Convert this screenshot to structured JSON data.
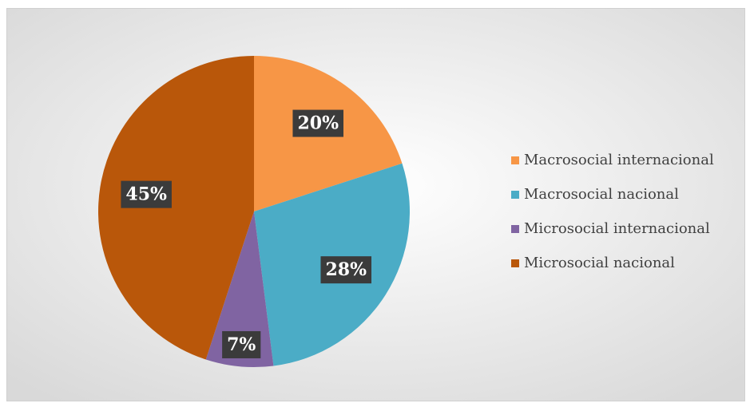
{
  "chart_data": {
    "type": "pie",
    "categories": [
      "Macrosocial internacional",
      "Macrosocial nacional",
      "Microsocial internacional",
      "Microsocial nacional"
    ],
    "values": [
      20,
      28,
      7,
      45
    ],
    "value_labels": [
      "20%",
      "28%",
      "7%",
      "45%"
    ],
    "colors": [
      "#f79646",
      "#4bacc6",
      "#8064a2",
      "#b9570a"
    ],
    "legend": "right"
  }
}
